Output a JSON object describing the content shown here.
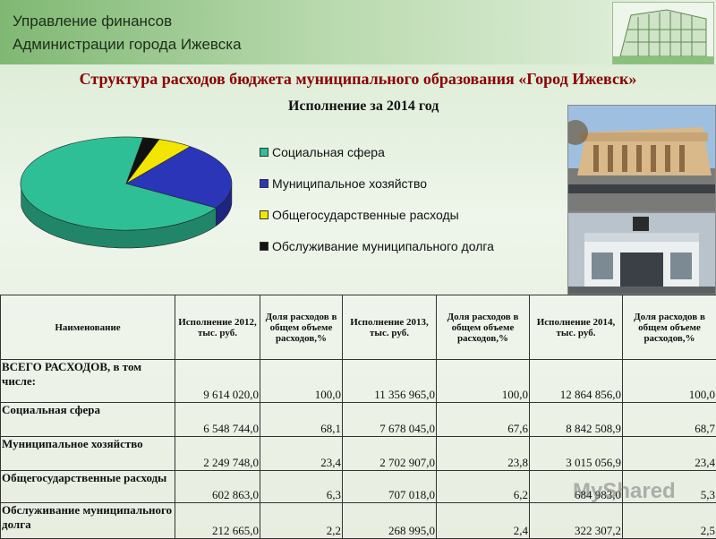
{
  "header": {
    "org_line1": "Управление финансов",
    "org_line2": "Администрации города Ижевска",
    "title": "Структура расходов бюджета муниципального образования «Город Ижевск»",
    "subtitle": "Исполнение за 2014 год"
  },
  "chart_data": {
    "type": "pie",
    "title": "Исполнение за 2014 год",
    "slices": [
      {
        "label": "Социальная сфера",
        "value": 68.7,
        "color": "#2fbf96"
      },
      {
        "label": "Муниципальное хозяйство",
        "value": 23.4,
        "color": "#2b35b8"
      },
      {
        "label": "Общегосударственные расходы",
        "value": 5.3,
        "color": "#f2e600"
      },
      {
        "label": "Обслуживание муниципального долга",
        "value": 2.5,
        "color": "#111111"
      }
    ],
    "legend_position": "right"
  },
  "table": {
    "headers": [
      "Наименование",
      "Исполнение 2012, тыс. руб.",
      "Доля расходов в общем объеме расходов,%",
      "Исполнение 2013, тыс. руб.",
      "Доля расходов в общем объеме расходов,%",
      "Исполнение 2014, тыс. руб.",
      "Доля расходов в общем объеме расходов,%"
    ],
    "rows": [
      [
        "ВСЕГО РАСХОДОВ, в том числе:",
        "9 614 020,0",
        "100,0",
        "11 356 965,0",
        "100,0",
        "12 864 856,0",
        "100,0"
      ],
      [
        "Социальная сфера",
        "6 548 744,0",
        "68,1",
        "7 678 045,0",
        "67,6",
        "8 842 508,9",
        "68,7"
      ],
      [
        "Муниципальное хозяйство",
        "2 249 748,0",
        "23,4",
        "2 702 907,0",
        "23,8",
        "3 015 056,9",
        "23,4"
      ],
      [
        "Общегосударственные расходы",
        "602 863,0",
        "6,3",
        "707 018,0",
        "6,2",
        "684 983,0",
        "5,3"
      ],
      [
        "Обслуживание муниципального долга",
        "212 665,0",
        "2,2",
        "268 995,0",
        "2,4",
        "322 307,2",
        "2,5"
      ]
    ]
  },
  "watermark": "MyShared"
}
